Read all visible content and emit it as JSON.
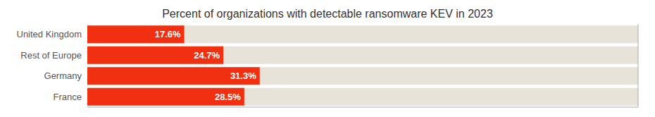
{
  "chart_data": {
    "type": "bar",
    "orientation": "horizontal",
    "title": "Percent of organizations with detectable ransomware KEV in 2023",
    "categories": [
      "United Kingdom",
      "Rest of Europe",
      "Germany",
      "France"
    ],
    "values": [
      17.6,
      24.7,
      31.3,
      28.5
    ],
    "value_labels": [
      "17.6%",
      "24.7%",
      "31.3%",
      "28.5%"
    ],
    "data_labels": true,
    "color": "#f03010",
    "xlim": [
      0,
      100
    ],
    "tick_labels": "y"
  }
}
